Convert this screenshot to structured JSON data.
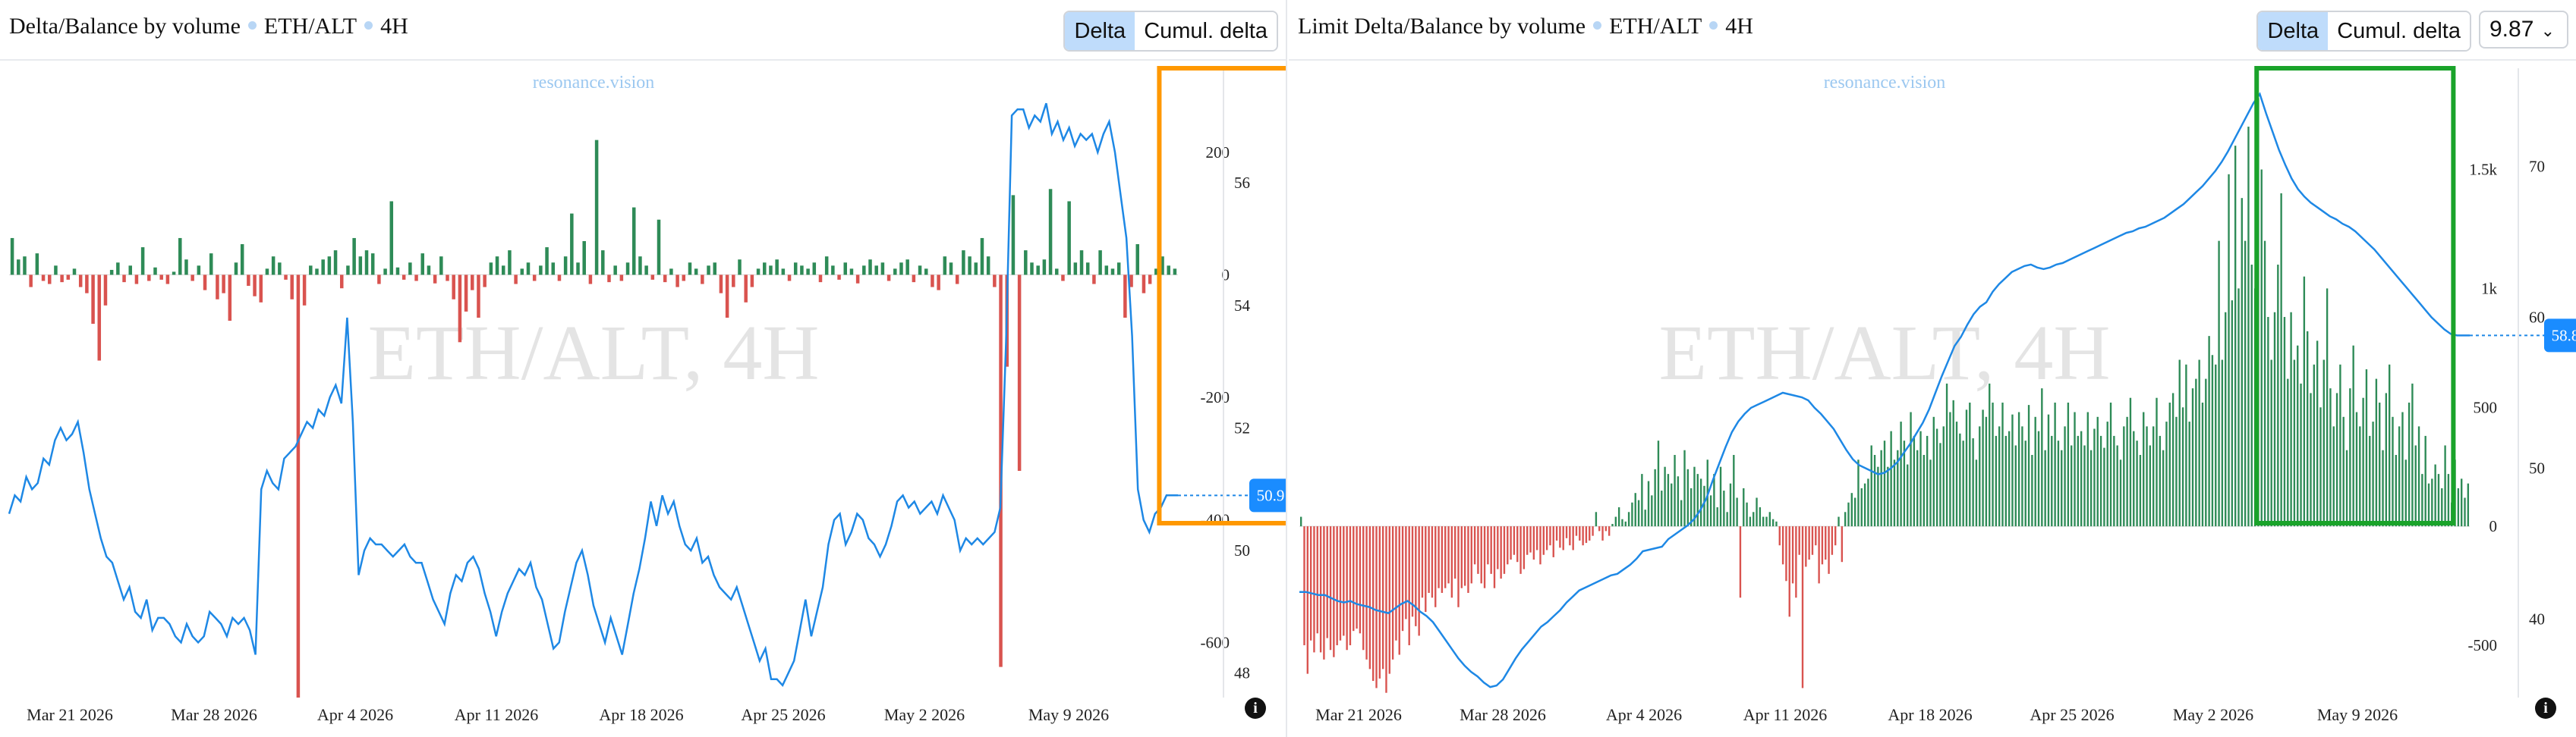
{
  "left_panel": {
    "title": "Delta/Balance by volume",
    "pair": "ETH/ALT",
    "timeframe": "4H",
    "tabs": [
      "Delta",
      "Cumul. delta"
    ],
    "active_tab": "Delta",
    "watermark_main": "ETH/ALT, 4H",
    "watermark_brand": "resonance.vision",
    "info_icon": "i"
  },
  "right_panel": {
    "title": "Limit Delta/Balance by volume",
    "pair": "ETH/ALT",
    "timeframe": "4H",
    "tabs": [
      "Delta",
      "Cumul. delta"
    ],
    "active_tab": "Delta",
    "dropdown_value": "9.87",
    "watermark_main": "ETH/ALT, 4H",
    "watermark_brand": "resonance.vision",
    "info_icon": "i"
  },
  "colors": {
    "positive_bar": "#2e8b57",
    "negative_bar": "#d9534f",
    "price_line": "#1e88e5",
    "orange_box": "#ff9800",
    "green_box": "#1aa32a",
    "badge": "#1a8cff"
  },
  "chart_data": [
    {
      "type": "bar",
      "name": "left",
      "x_ticks": [
        "Mar 21 2026",
        "Mar 28 2026",
        "Apr 4 2026",
        "Apr 11 2026",
        "Apr 18 2026",
        "Apr 25 2026",
        "May 2 2026",
        "May 9 2026"
      ],
      "y_left_ticks": [
        "200",
        "0",
        "-200",
        "-400",
        "-600"
      ],
      "y_right_ticks": [
        "56",
        "54",
        "52",
        "50",
        "48"
      ],
      "delta_range": [
        -690,
        300
      ],
      "price_range": [
        47.6,
        57.5
      ],
      "badge_value": "50.9",
      "delta_values": [
        60,
        25,
        30,
        -20,
        35,
        -10,
        -15,
        15,
        -12,
        -8,
        10,
        -20,
        -30,
        -80,
        -140,
        -50,
        8,
        20,
        -12,
        15,
        -15,
        45,
        -10,
        12,
        -8,
        -15,
        5,
        60,
        25,
        -10,
        15,
        -25,
        35,
        -40,
        -30,
        -75,
        20,
        50,
        -18,
        -35,
        -45,
        10,
        30,
        20,
        -8,
        -40,
        -690,
        -50,
        15,
        10,
        25,
        30,
        40,
        -22,
        15,
        60,
        30,
        40,
        35,
        -15,
        10,
        120,
        12,
        -8,
        20,
        -10,
        35,
        15,
        -14,
        30,
        -10,
        -40,
        -110,
        -60,
        -25,
        -70,
        -20,
        20,
        30,
        15,
        40,
        -15,
        10,
        20,
        -10,
        15,
        45,
        20,
        -10,
        30,
        100,
        20,
        55,
        -15,
        220,
        40,
        -12,
        15,
        -10,
        20,
        110,
        30,
        15,
        -8,
        90,
        -12,
        10,
        -20,
        -10,
        20,
        10,
        -15,
        15,
        20,
        -30,
        -70,
        -20,
        25,
        -45,
        -20,
        10,
        20,
        15,
        25,
        10,
        -10,
        20,
        15,
        10,
        20,
        -12,
        30,
        15,
        -8,
        20,
        10,
        -14,
        15,
        25,
        15,
        20,
        -10,
        10,
        20,
        25,
        -12,
        15,
        10,
        -20,
        -25,
        30,
        20,
        -15,
        40,
        30,
        20,
        60,
        30,
        -20,
        -640,
        -150,
        130,
        -320,
        40,
        20,
        15,
        25,
        140,
        10,
        -10,
        120,
        20,
        40,
        20,
        -15,
        40,
        15,
        10,
        20,
        -70,
        -20,
        50,
        -30,
        -15,
        10,
        30,
        15,
        10
      ],
      "price_values": [
        50.6,
        50.9,
        50.8,
        51.2,
        51.0,
        51.1,
        51.5,
        51.4,
        51.8,
        52.0,
        51.8,
        51.9,
        52.1,
        51.6,
        51.0,
        50.6,
        50.2,
        49.9,
        49.8,
        49.5,
        49.2,
        49.4,
        49.0,
        48.9,
        49.2,
        48.7,
        48.9,
        48.9,
        48.8,
        48.6,
        48.5,
        48.8,
        48.6,
        48.5,
        48.6,
        49.0,
        48.9,
        48.8,
        48.6,
        48.9,
        48.8,
        48.9,
        48.7,
        48.3,
        51.0,
        51.3,
        51.1,
        51.0,
        51.5,
        51.6,
        51.7,
        51.9,
        52.1,
        52.0,
        52.3,
        52.2,
        52.5,
        52.7,
        52.4,
        53.8,
        52.1,
        49.6,
        50.0,
        50.2,
        50.1,
        50.1,
        50.0,
        49.9,
        50.0,
        50.1,
        49.9,
        49.8,
        49.8,
        49.5,
        49.2,
        49.0,
        48.8,
        49.3,
        49.6,
        49.5,
        49.8,
        49.9,
        49.7,
        49.3,
        49.0,
        48.6,
        49.0,
        49.3,
        49.5,
        49.7,
        49.6,
        49.8,
        49.4,
        49.2,
        48.8,
        48.4,
        48.5,
        49.0,
        49.4,
        49.8,
        50.0,
        49.6,
        49.1,
        48.8,
        48.5,
        48.9,
        48.6,
        48.3,
        48.8,
        49.3,
        49.7,
        50.2,
        50.8,
        50.4,
        50.9,
        50.6,
        50.8,
        50.4,
        50.1,
        50.0,
        50.2,
        49.8,
        49.9,
        49.6,
        49.4,
        49.3,
        49.2,
        49.4,
        49.1,
        48.8,
        48.5,
        48.2,
        48.4,
        47.9,
        47.9,
        47.8,
        48.0,
        48.2,
        48.7,
        49.2,
        48.6,
        49.0,
        49.4,
        50.1,
        50.5,
        50.6,
        50.1,
        50.3,
        50.6,
        50.5,
        50.2,
        50.1,
        49.9,
        50.1,
        50.4,
        50.8,
        50.9,
        50.7,
        50.8,
        50.6,
        50.7,
        50.8,
        50.6,
        50.9,
        50.7,
        50.5,
        50.0,
        50.2,
        50.1,
        50.2,
        50.1,
        50.2,
        50.3,
        50.7,
        53.4,
        57.1,
        57.2,
        57.2,
        56.9,
        57.1,
        57.0,
        57.3,
        56.8,
        57.0,
        56.7,
        56.9,
        56.6,
        56.8,
        56.7,
        56.8,
        56.5,
        56.8,
        57.0,
        56.5,
        55.8,
        55.1,
        53.5,
        51.0,
        50.5,
        50.3,
        50.6,
        50.7,
        50.9,
        50.9,
        50.9
      ],
      "highlight_box": {
        "from_index": 185,
        "to_index": 210,
        "color": "orange"
      }
    },
    {
      "type": "bar",
      "name": "right",
      "x_ticks": [
        "Mar 21 2026",
        "Mar 28 2026",
        "Apr 4 2026",
        "Apr 11 2026",
        "Apr 18 2026",
        "Apr 25 2026",
        "May 2 2026",
        "May 9 2026"
      ],
      "y_left_ticks": [
        "1.5k",
        "1k",
        "500",
        "0",
        "-500"
      ],
      "y_right_ticks": [
        "70",
        "60",
        "50",
        "40"
      ],
      "delta_range": [
        -720,
        1830
      ],
      "price_range": [
        34.8,
        75
      ],
      "badge_value": "58.8",
      "delta_values": [
        40,
        -500,
        -620,
        -480,
        -530,
        -450,
        -530,
        -560,
        -470,
        -520,
        -550,
        -500,
        -480,
        -460,
        -520,
        -500,
        -440,
        -430,
        -450,
        -520,
        -560,
        -600,
        -650,
        -680,
        -640,
        -600,
        -700,
        -620,
        -560,
        -480,
        -540,
        -440,
        -390,
        -500,
        -380,
        -420,
        -460,
        -300,
        -360,
        -280,
        -300,
        -340,
        -260,
        -280,
        -260,
        -240,
        -300,
        -220,
        -340,
        -260,
        -250,
        -280,
        -240,
        -160,
        -200,
        -240,
        -260,
        -160,
        -200,
        -260,
        -180,
        -220,
        -200,
        -160,
        -140,
        -120,
        -150,
        -200,
        -180,
        -120,
        -110,
        -140,
        -100,
        -160,
        -120,
        -100,
        -80,
        -130,
        -60,
        -90,
        -100,
        -50,
        -80,
        -100,
        -40,
        -60,
        -80,
        -70,
        -60,
        -40,
        60,
        -20,
        -60,
        -20,
        -40,
        10,
        40,
        80,
        30,
        20,
        60,
        100,
        140,
        110,
        220,
        70,
        190,
        130,
        240,
        360,
        150,
        250,
        220,
        180,
        300,
        210,
        110,
        320,
        240,
        160,
        250,
        220,
        200,
        170,
        280,
        130,
        220,
        80,
        250,
        150,
        60,
        180,
        300,
        120,
        -300,
        160,
        100,
        40,
        60,
        120,
        80,
        40,
        40,
        60,
        30,
        20,
        -80,
        -160,
        -230,
        -380,
        -240,
        -300,
        -120,
        -680,
        -170,
        -140,
        -120,
        -80,
        -240,
        -160,
        -140,
        -200,
        -120,
        -80,
        40,
        -150,
        60,
        100,
        140,
        120,
        280,
        160,
        180,
        200,
        340,
        300,
        250,
        320,
        360,
        250,
        400,
        280,
        320,
        440,
        360,
        260,
        480,
        380,
        320,
        400,
        300,
        380,
        280,
        460,
        410,
        350,
        420,
        600,
        480,
        530,
        440,
        390,
        360,
        490,
        520,
        370,
        280,
        420,
        490,
        460,
        600,
        520,
        380,
        420,
        520,
        380,
        400,
        470,
        340,
        480,
        420,
        360,
        510,
        300,
        460,
        400,
        580,
        320,
        470,
        380,
        520,
        360,
        320,
        420,
        520,
        340,
        480,
        380,
        400,
        340,
        480,
        320,
        410,
        460,
        380,
        330,
        440,
        520,
        380,
        340,
        280,
        420,
        460,
        540,
        400,
        360,
        300,
        480,
        420,
        340,
        420,
        540,
        380,
        320,
        440,
        520,
        560,
        460,
        700,
        500,
        680,
        440,
        580,
        620,
        700,
        520,
        620,
        800,
        720,
        680,
        1200,
        700,
        900,
        1480,
        950,
        1600,
        1000,
        1380,
        1200,
        1680,
        1100,
        1000,
        1800,
        1500,
        1200,
        880,
        700,
        900,
        1100,
        1400,
        880,
        620,
        900,
        700,
        760,
        600,
        1050,
        820,
        560,
        680,
        780,
        500,
        700,
        1000,
        580,
        420,
        560,
        680,
        460,
        320,
        580,
        760,
        480,
        420,
        540,
        660,
        380,
        440,
        620,
        520,
        320,
        560,
        680,
        460,
        300,
        420,
        480,
        280,
        520,
        600,
        340,
        420,
        220,
        380,
        180,
        200,
        260,
        220,
        160,
        340,
        220,
        100,
        280,
        160,
        200,
        120,
        180
      ],
      "price_values": [
        41.8,
        41.8,
        41.7,
        41.6,
        41.6,
        41.4,
        41.2,
        41.1,
        41.2,
        41.0,
        40.9,
        40.8,
        40.6,
        40.5,
        40.4,
        40.7,
        41.0,
        41.2,
        40.9,
        40.5,
        40.2,
        39.8,
        39.2,
        38.6,
        38.0,
        37.4,
        36.9,
        36.5,
        36.2,
        35.8,
        35.5,
        35.6,
        36.0,
        36.7,
        37.4,
        38.0,
        38.5,
        39.0,
        39.5,
        39.8,
        40.2,
        40.6,
        41.1,
        41.5,
        41.9,
        42.1,
        42.3,
        42.5,
        42.7,
        42.9,
        43.0,
        43.3,
        43.6,
        44.0,
        44.5,
        44.6,
        44.7,
        44.8,
        45.3,
        45.6,
        45.9,
        46.2,
        46.6,
        47.2,
        48.0,
        49.2,
        50.3,
        51.4,
        52.4,
        53.1,
        53.6,
        54.0,
        54.2,
        54.4,
        54.6,
        54.8,
        55.0,
        54.9,
        54.8,
        54.7,
        54.5,
        54.0,
        53.6,
        53.1,
        52.6,
        51.9,
        51.2,
        50.6,
        50.2,
        50.0,
        49.8,
        49.6,
        49.7,
        50.0,
        50.4,
        51.0,
        51.6,
        52.3,
        53.0,
        53.9,
        55.0,
        56.1,
        57.1,
        58.1,
        58.7,
        59.5,
        60.2,
        60.7,
        61.0,
        61.7,
        62.2,
        62.6,
        63.0,
        63.2,
        63.4,
        63.5,
        63.3,
        63.2,
        63.3,
        63.5,
        63.6,
        63.8,
        64.0,
        64.2,
        64.4,
        64.6,
        64.8,
        65.0,
        65.2,
        65.4,
        65.6,
        65.7,
        65.9,
        66.0,
        66.2,
        66.4,
        66.6,
        66.9,
        67.2,
        67.5,
        67.9,
        68.3,
        68.7,
        69.2,
        69.7,
        70.3,
        71.0,
        71.8,
        72.6,
        73.4,
        74.2,
        74.8,
        73.5,
        72.3,
        71.1,
        70.1,
        69.2,
        68.5,
        68.0,
        67.6,
        67.3,
        67.0,
        66.7,
        66.5,
        66.2,
        66.0,
        65.7,
        65.3,
        64.9,
        64.5,
        64.0,
        63.5,
        63.0,
        62.5,
        62.0,
        61.5,
        61.0,
        60.5,
        60.0,
        59.6,
        59.2,
        58.9,
        58.8,
        58.8,
        58.8
      ],
      "highlight_box": {
        "from_index": 292,
        "to_index": 352,
        "color": "green"
      }
    }
  ]
}
